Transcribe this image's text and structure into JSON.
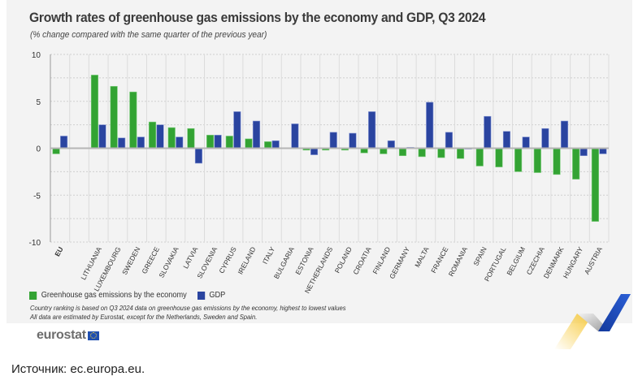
{
  "header": {
    "title": "Growth rates of greenhouse gas emissions by the economy and GDP, Q3 2024",
    "subtitle": "(% change compared with the same quarter of the previous year)"
  },
  "legend": {
    "items": [
      {
        "label": "Greenhouse gas emissions by the economy",
        "color": "#33a333"
      },
      {
        "label": "GDP",
        "color": "#2a44a0"
      }
    ]
  },
  "notes": [
    "Country ranking is based on Q3 2024 data on greenhouse gas emissions by the economy, highest to lowest values",
    "All data are estimated by Eurostat, except for the Netherlands, Sweden and Spain."
  ],
  "logo": {
    "text": "eurostat"
  },
  "source": "Источник: ec.europa.eu.",
  "chart_data": {
    "type": "bar",
    "title": "Growth rates of greenhouse gas emissions by the economy and GDP, Q3 2024",
    "subtitle": "(% change compared with the same quarter of the previous year)",
    "xlabel": "",
    "ylabel": "",
    "ylim": [
      -10,
      10
    ],
    "yticks": [
      10,
      5,
      0,
      -5,
      -10
    ],
    "grid": true,
    "legend_position": "bottom-left",
    "categories": [
      "EU",
      "",
      "LITHUANIA",
      "LUXEMBOURG",
      "SWEDEN",
      "GREECE",
      "SLOVAKIA",
      "LATVIA",
      "SLOVENIA",
      "CYPRUS",
      "IRELAND",
      "ITALY",
      "BULGARIA",
      "ESTONIA",
      "NETHERLANDS",
      "POLAND",
      "CROATIA",
      "FINLAND",
      "GERMANY",
      "MALTA",
      "FRANCE",
      "ROMANIA",
      "SPAIN",
      "PORTUGAL",
      "BELGIUM",
      "CZECHIA",
      "DENMARK",
      "HUNGARY",
      "AUSTRIA"
    ],
    "series": [
      {
        "name": "Greenhouse gas emissions by the economy",
        "color": "#33a333",
        "values": [
          -0.6,
          null,
          7.8,
          6.6,
          6.0,
          2.8,
          2.2,
          2.1,
          1.4,
          1.3,
          1.0,
          0.7,
          0.0,
          -0.2,
          -0.2,
          -0.2,
          -0.5,
          -0.6,
          -0.8,
          -0.9,
          -1.0,
          -1.1,
          -1.9,
          -2.0,
          -2.5,
          -2.6,
          -2.8,
          -3.3,
          -7.8
        ]
      },
      {
        "name": "GDP",
        "color": "#2a44a0",
        "values": [
          1.3,
          null,
          2.5,
          1.1,
          1.2,
          2.5,
          1.2,
          -1.6,
          1.4,
          3.9,
          2.9,
          0.8,
          2.6,
          -0.7,
          1.7,
          1.6,
          3.9,
          0.8,
          0.1,
          4.9,
          1.7,
          -0.1,
          3.4,
          1.8,
          1.2,
          2.1,
          2.9,
          -0.8,
          -0.6
        ]
      }
    ]
  }
}
